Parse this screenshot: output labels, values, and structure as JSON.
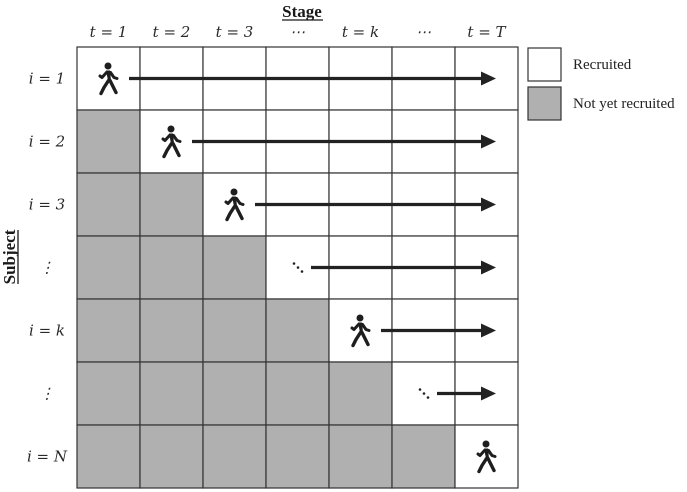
{
  "diagram": {
    "column_title": "Stage",
    "row_title": "Subject",
    "column_labels": [
      "t = 1",
      "t = 2",
      "t = 3",
      "⋯",
      "t = k",
      "⋯",
      "t = T"
    ],
    "row_labels": [
      "i = 1",
      "i = 2",
      "i = 3",
      "⋮",
      "i = k",
      "⋮",
      "i = N"
    ],
    "cells_note": "row r, column c: gray if c < r, start marker at c == r",
    "row_start_markers": [
      "walker-icon",
      "walker-icon",
      "walker-icon",
      "diagonal-dots",
      "walker-icon",
      "diagonal-dots",
      "walker-icon"
    ],
    "colors": {
      "recruited": "#ffffff",
      "not_yet_recruited": "#b0b0b0",
      "grid_line": "#333333",
      "arrow": "#222222"
    }
  },
  "legend": {
    "recruited_label": "Recruited",
    "not_recruited_label": "Not yet recruited"
  }
}
